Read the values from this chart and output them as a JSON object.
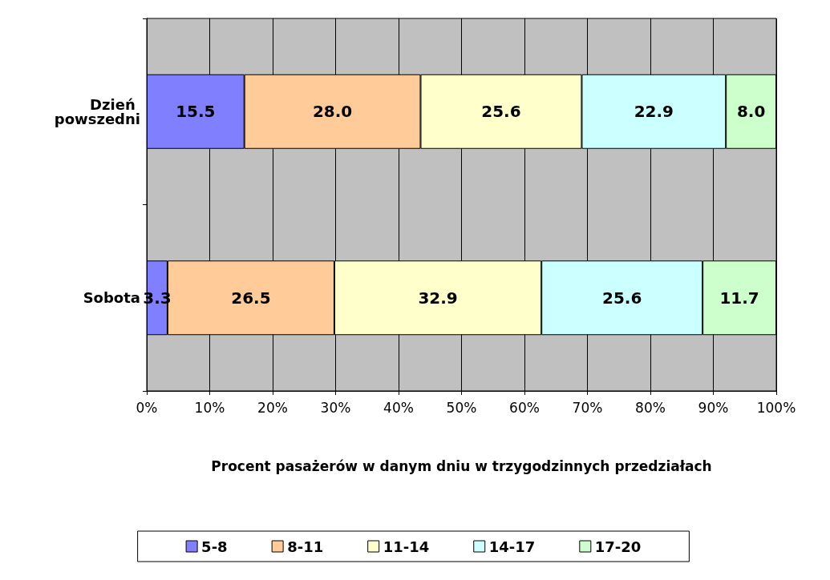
{
  "chart_data": {
    "type": "bar",
    "orientation": "horizontal",
    "stacked": true,
    "categories": [
      "Dzień powszedni",
      "Sobota"
    ],
    "xlabel": "Procent pasażerów w danym dniu w trzygodzinnych przedziałach",
    "xlim": [
      0,
      100
    ],
    "xticks": [
      {
        "value": 0,
        "label": "0%"
      },
      {
        "value": 10,
        "label": "10%"
      },
      {
        "value": 20,
        "label": "20%"
      },
      {
        "value": 30,
        "label": "30%"
      },
      {
        "value": 40,
        "label": "40%"
      },
      {
        "value": 50,
        "label": "50%"
      },
      {
        "value": 60,
        "label": "60%"
      },
      {
        "value": 70,
        "label": "70%"
      },
      {
        "value": 80,
        "label": "80%"
      },
      {
        "value": 90,
        "label": "90%"
      },
      {
        "value": 100,
        "label": "100%"
      }
    ],
    "grid": "x",
    "legend": "bottom",
    "series": [
      {
        "name": "5-8",
        "color": "#8080ff",
        "values": [
          15.5,
          3.3
        ],
        "value_labels": [
          "15.5",
          "3.3"
        ]
      },
      {
        "name": "8-11",
        "color": "#ffcc99",
        "values": [
          28.0,
          26.5
        ],
        "value_labels": [
          "28.0",
          "26.5"
        ]
      },
      {
        "name": "11-14",
        "color": "#ffffcc",
        "values": [
          25.6,
          32.9
        ],
        "value_labels": [
          "25.6",
          "32.9"
        ]
      },
      {
        "name": "14-17",
        "color": "#ccffff",
        "values": [
          22.9,
          25.6
        ],
        "value_labels": [
          "22.9",
          "25.6"
        ]
      },
      {
        "name": "17-20",
        "color": "#ccffcc",
        "values": [
          8.0,
          11.7
        ],
        "value_labels": [
          "8.0",
          "11.7"
        ]
      }
    ]
  }
}
